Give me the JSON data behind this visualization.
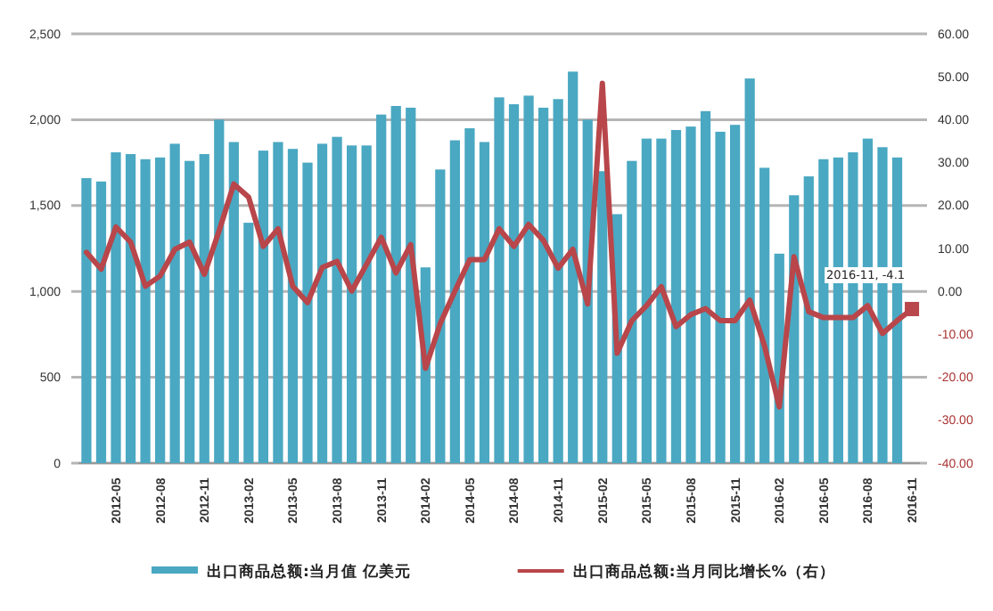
{
  "chart_data": {
    "type": "bar",
    "categories": [
      null,
      null,
      "2012-05",
      null,
      null,
      "2012-08",
      null,
      null,
      "2012-11",
      null,
      null,
      "2013-02",
      null,
      null,
      "2013-05",
      null,
      null,
      "2013-08",
      null,
      null,
      "2013-11",
      null,
      null,
      "2014-02",
      null,
      null,
      "2014-05",
      null,
      null,
      "2014-08",
      null,
      null,
      "2014-11",
      null,
      null,
      "2015-02",
      null,
      null,
      "2015-05",
      null,
      null,
      "2015-08",
      null,
      null,
      "2015-11",
      null,
      null,
      "2016-02",
      null,
      null,
      "2016-05",
      null,
      null,
      "2016-08",
      null,
      null,
      "2016-11"
    ],
    "series": [
      {
        "name": "出口商品总额:当月值 亿美元",
        "color": "#4aa8c2",
        "values": [
          1660,
          1640,
          1810,
          1800,
          1770,
          1780,
          1860,
          1760,
          1800,
          2000,
          1870,
          1400,
          1820,
          1870,
          1830,
          1750,
          1860,
          1900,
          1850,
          1850,
          2030,
          2080,
          2070,
          1140,
          1710,
          1880,
          1950,
          1870,
          2130,
          2090,
          2140,
          2070,
          2120,
          2280,
          2000,
          1700,
          1450,
          1760,
          1890,
          1890,
          1940,
          1960,
          2050,
          1930,
          1970,
          2240,
          1720,
          1220,
          1560,
          1670,
          1770,
          1780,
          1810,
          1890,
          1840,
          1780,
          null
        ]
      },
      {
        "name": "出口商品总额:当月同比增长%（右）",
        "type": "line",
        "axis": "y2",
        "color": "#b8464a",
        "values": [
          9.1,
          5.2,
          15.0,
          11.5,
          1.2,
          3.6,
          9.8,
          11.5,
          4.0,
          14.1,
          25.0,
          22.0,
          10.5,
          14.6,
          1.2,
          -2.6,
          5.6,
          7.0,
          0.1,
          6.3,
          12.6,
          4.3,
          10.9,
          -17.9,
          -7.5,
          0.1,
          7.4,
          7.4,
          14.6,
          10.5,
          15.6,
          11.9,
          5.4,
          9.8,
          -2.9,
          48.5,
          -14.4,
          -6.8,
          -3.3,
          1.1,
          -8.2,
          -5.4,
          -4.0,
          -6.8,
          -6.8,
          -2.0,
          -12.7,
          -26.9,
          8.1,
          -4.7,
          -6.1,
          -6.1,
          -6.1,
          -3.3,
          -9.8,
          -6.8,
          -4.1
        ]
      }
    ],
    "ylim": [
      0,
      2500
    ],
    "yticks": [
      0,
      {
        "value": 500,
        "label": "500"
      },
      {
        "value": 1000,
        "label": "1,000"
      },
      {
        "value": 1500,
        "label": "1,500"
      },
      {
        "value": 2000,
        "label": "2,000"
      },
      {
        "value": 2500,
        "label": "2,500"
      }
    ],
    "y2lim": [
      -40,
      60
    ],
    "y2ticks": [
      {
        "value": -40,
        "label": "-40.00"
      },
      {
        "value": -30,
        "label": "-30.00"
      },
      {
        "value": -20,
        "label": "-20.00"
      },
      {
        "value": -10,
        "label": "-10.00"
      },
      {
        "value": 0,
        "label": "0.00"
      },
      {
        "value": 10,
        "label": "10.00"
      },
      {
        "value": 20,
        "label": "20.00"
      },
      {
        "value": 30,
        "label": "30.00"
      },
      {
        "value": 40,
        "label": "40.00"
      },
      {
        "value": 50,
        "label": "50.00"
      },
      {
        "value": 60,
        "label": "60.00"
      }
    ],
    "annotations": [
      "2016-11, -4.1"
    ],
    "grid": "y",
    "legend": "bottom"
  }
}
